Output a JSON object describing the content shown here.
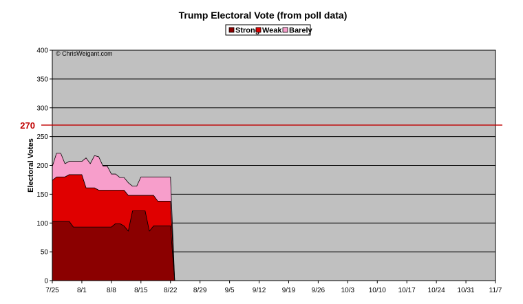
{
  "chart_data": {
    "type": "area",
    "stacked": true,
    "title": "Trump Electoral Vote (from poll data)",
    "ylabel": "Electoral Votes",
    "xlabel": "",
    "credit": "© ChrisWeigant.com",
    "ylim": [
      0,
      400
    ],
    "yticks": [
      0,
      50,
      100,
      150,
      200,
      250,
      300,
      350,
      400
    ],
    "xlim": [
      "2016-07-25",
      "2016-11-07"
    ],
    "xtick_labels": [
      "7/25",
      "8/1",
      "8/8",
      "8/15",
      "8/22",
      "8/29",
      "9/5",
      "9/12",
      "9/19",
      "9/26",
      "10/3",
      "10/10",
      "10/17",
      "10/24",
      "10/31",
      "11/7"
    ],
    "reference_line": {
      "value": 270,
      "label": "270",
      "color": "#c00000"
    },
    "grid": true,
    "legend": "top-center",
    "x": [
      "2016-07-25",
      "2016-07-26",
      "2016-07-27",
      "2016-07-28",
      "2016-07-29",
      "2016-07-30",
      "2016-07-31",
      "2016-08-01",
      "2016-08-02",
      "2016-08-03",
      "2016-08-04",
      "2016-08-05",
      "2016-08-06",
      "2016-08-07",
      "2016-08-08",
      "2016-08-09",
      "2016-08-10",
      "2016-08-11",
      "2016-08-12",
      "2016-08-13",
      "2016-08-14",
      "2016-08-15",
      "2016-08-16",
      "2016-08-17",
      "2016-08-18",
      "2016-08-19",
      "2016-08-20",
      "2016-08-21",
      "2016-08-22",
      "2016-08-23"
    ],
    "series": [
      {
        "name": "Strong",
        "color": "#8b0000",
        "values": [
          103,
          103,
          103,
          103,
          103,
          93,
          93,
          93,
          93,
          93,
          93,
          93,
          93,
          93,
          93,
          99,
          99,
          95,
          86,
          121,
          121,
          121,
          121,
          86,
          95,
          95,
          95,
          95,
          95,
          0
        ]
      },
      {
        "name": "Weak",
        "color": "#e00000",
        "values": [
          71,
          77,
          77,
          77,
          81,
          91,
          91,
          91,
          68,
          68,
          68,
          64,
          64,
          64,
          64,
          58,
          58,
          62,
          62,
          27,
          27,
          27,
          27,
          62,
          53,
          43,
          43,
          43,
          43,
          0
        ]
      },
      {
        "name": "Barely",
        "color": "#f79ecb",
        "values": [
          24,
          41,
          41,
          23,
          23,
          23,
          23,
          23,
          52,
          42,
          56,
          58,
          42,
          42,
          28,
          28,
          22,
          22,
          22,
          16,
          16,
          32,
          32,
          32,
          32,
          42,
          42,
          42,
          42,
          0
        ]
      }
    ]
  }
}
